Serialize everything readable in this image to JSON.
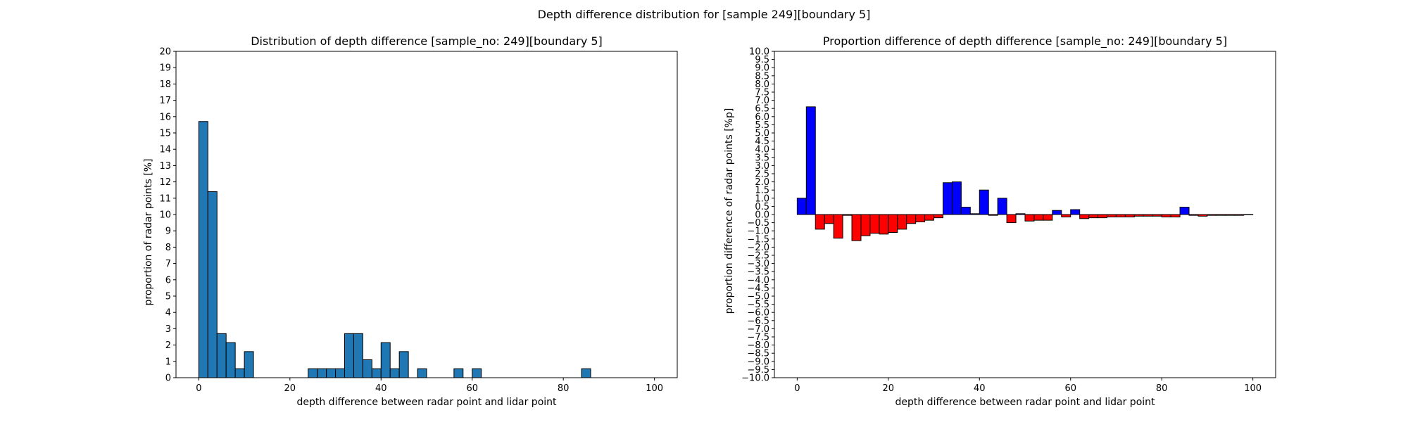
{
  "figure": {
    "suptitle": "Depth difference distribution for [sample 249][boundary 5]"
  },
  "chart_data": [
    {
      "type": "bar",
      "title": "Distribution of depth difference [sample_no: 249][boundary 5]",
      "xlabel": "depth difference between radar point and lidar point",
      "ylabel": "proportion of radar points [%]",
      "xlim": [
        -5,
        105
      ],
      "ylim": [
        0,
        20
      ],
      "xticks": [
        0,
        20,
        40,
        60,
        80,
        100
      ],
      "yticks": [
        0,
        1,
        2,
        3,
        4,
        5,
        6,
        7,
        8,
        9,
        10,
        11,
        12,
        13,
        14,
        15,
        16,
        17,
        18,
        19,
        20
      ],
      "bin_width": 2,
      "bar_color": "#1f77b4",
      "edge_color": "#000000",
      "x": [
        0,
        2,
        4,
        6,
        8,
        10,
        24,
        26,
        28,
        30,
        32,
        34,
        36,
        38,
        40,
        42,
        44,
        48,
        56,
        60,
        84
      ],
      "values": [
        15.7,
        11.4,
        2.7,
        2.15,
        0.55,
        1.6,
        0.55,
        0.55,
        0.55,
        0.55,
        2.7,
        2.7,
        1.1,
        0.55,
        2.15,
        0.55,
        1.6,
        0.55,
        0.55,
        0.55,
        0.55
      ]
    },
    {
      "type": "bar",
      "title": "Proportion difference of depth difference [sample_no: 249][boundary 5]",
      "xlabel": "depth difference between radar point and lidar point",
      "ylabel": "proportion difference of radar points [%p]",
      "xlim": [
        -5,
        105
      ],
      "ylim": [
        -10,
        10
      ],
      "xticks": [
        0,
        20,
        40,
        60,
        80,
        100
      ],
      "yticks": [
        -10,
        -9.5,
        -9,
        -8.5,
        -8,
        -7.5,
        -7,
        -6.5,
        -6,
        -5.5,
        -5,
        -4.5,
        -4,
        -3.5,
        -3,
        -2.5,
        -2,
        -1.5,
        -1,
        -0.5,
        0,
        0.5,
        1,
        1.5,
        2,
        2.5,
        3,
        3.5,
        4,
        4.5,
        5,
        5.5,
        6,
        6.5,
        7,
        7.5,
        8,
        8.5,
        9,
        9.5,
        10
      ],
      "bin_width": 2,
      "positive_color": "#0000ff",
      "negative_color": "#ff0000",
      "edge_color": "#000000",
      "x": [
        0,
        2,
        4,
        6,
        8,
        10,
        12,
        14,
        16,
        18,
        20,
        22,
        24,
        26,
        28,
        30,
        32,
        34,
        36,
        38,
        40,
        42,
        44,
        46,
        48,
        50,
        52,
        54,
        56,
        58,
        60,
        62,
        64,
        66,
        68,
        70,
        72,
        74,
        76,
        78,
        80,
        82,
        84,
        86,
        88,
        90,
        92,
        94,
        96,
        98
      ],
      "values": [
        1.0,
        6.6,
        -0.9,
        -0.55,
        -1.45,
        -0.05,
        -1.6,
        -1.3,
        -1.15,
        -1.2,
        -1.1,
        -0.9,
        -0.55,
        -0.45,
        -0.35,
        -0.2,
        1.95,
        2.0,
        0.45,
        0.05,
        1.5,
        -0.05,
        1.0,
        -0.5,
        0.05,
        -0.4,
        -0.35,
        -0.35,
        0.25,
        -0.15,
        0.3,
        -0.25,
        -0.2,
        -0.2,
        -0.15,
        -0.15,
        -0.15,
        -0.1,
        -0.1,
        -0.1,
        -0.15,
        -0.15,
        0.45,
        -0.05,
        -0.1,
        -0.05,
        -0.05,
        -0.05,
        -0.05,
        -0.02
      ]
    }
  ]
}
